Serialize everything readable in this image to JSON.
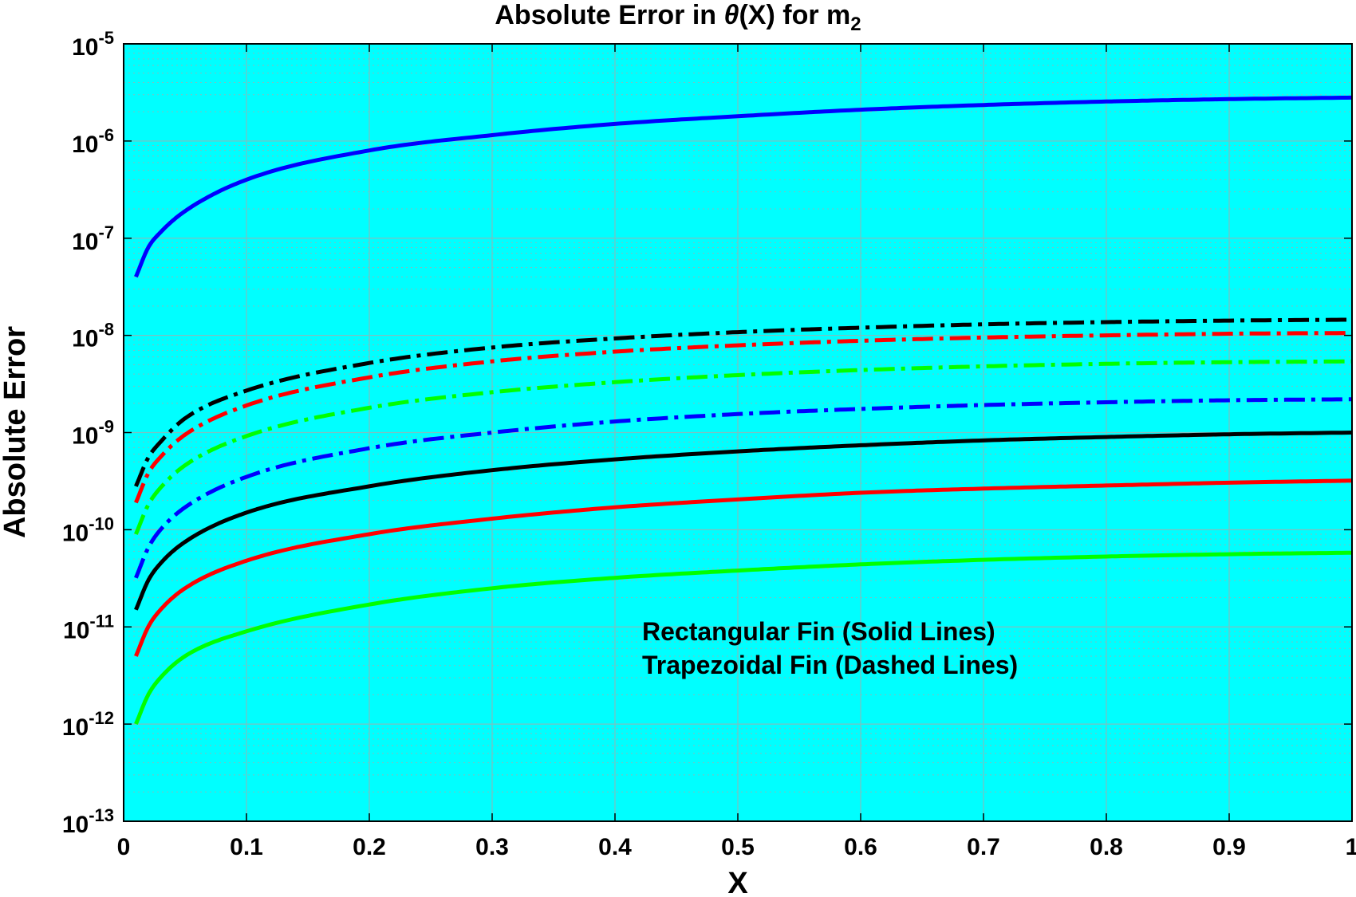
{
  "chart_data": {
    "type": "line",
    "title": {
      "prefix": "Absolute  Error  in  ",
      "theta": "θ",
      "middle": "(X)  for  m",
      "subscript": "2"
    },
    "xlabel": "X",
    "ylabel": "Absolute Error",
    "xlim": [
      0,
      1
    ],
    "ylim": [
      1e-13,
      1e-05
    ],
    "y_scale": "log",
    "grid": true,
    "x_ticks": [
      0,
      0.1,
      0.2,
      0.3,
      0.4,
      0.5,
      0.6,
      0.7,
      0.8,
      0.9,
      1
    ],
    "x_tick_labels": [
      "0",
      "0.1",
      "0.2",
      "0.3",
      "0.4",
      "0.5",
      "0.6",
      "0.7",
      "0.8",
      "0.9",
      "1"
    ],
    "y_ticks": [
      {
        "base": "10",
        "exp": "-13",
        "value": 1e-13
      },
      {
        "base": "10",
        "exp": "-12",
        "value": 1e-12
      },
      {
        "base": "10",
        "exp": "-11",
        "value": 1e-11
      },
      {
        "base": "10",
        "exp": "-10",
        "value": 1e-10
      },
      {
        "base": "10",
        "exp": "-9",
        "value": 1e-09
      },
      {
        "base": "10",
        "exp": "-8",
        "value": 1e-08
      },
      {
        "base": "10",
        "exp": "-7",
        "value": 1e-07
      },
      {
        "base": "10",
        "exp": "-6",
        "value": 1e-06
      },
      {
        "base": "10",
        "exp": "-5",
        "value": 1e-05
      }
    ],
    "x": [
      0.01,
      0.02,
      0.03,
      0.05,
      0.1,
      0.2,
      0.3,
      0.4,
      0.5,
      0.6,
      0.7,
      0.8,
      0.9,
      1.0
    ],
    "series": [
      {
        "color": "#0000ff",
        "dashed": false,
        "values": [
          4e-08,
          8e-08,
          1.15e-07,
          1.9e-07,
          4e-07,
          8e-07,
          1.15e-06,
          1.5e-06,
          1.8e-06,
          2.1e-06,
          2.35e-06,
          2.55e-06,
          2.7e-06,
          2.8e-06
        ]
      },
      {
        "color": "#000000",
        "dashed": false,
        "values": [
          1.5e-11,
          3e-11,
          4.5e-11,
          7.5e-11,
          1.5e-10,
          2.8e-10,
          4.1e-10,
          5.3e-10,
          6.4e-10,
          7.4e-10,
          8.3e-10,
          9e-10,
          9.6e-10,
          1e-09
        ]
      },
      {
        "color": "#ff0000",
        "dashed": false,
        "values": [
          5e-12,
          1e-11,
          1.5e-11,
          2.5e-11,
          4.8e-11,
          9e-11,
          1.3e-10,
          1.7e-10,
          2.05e-10,
          2.4e-10,
          2.65e-10,
          2.85e-10,
          3.05e-10,
          3.2e-10
        ]
      },
      {
        "color": "#00ff00",
        "dashed": false,
        "values": [
          1e-12,
          2e-12,
          3e-12,
          5e-12,
          9e-12,
          1.7e-11,
          2.5e-11,
          3.2e-11,
          3.8e-11,
          4.4e-11,
          4.9e-11,
          5.3e-11,
          5.6e-11,
          5.8e-11
        ]
      },
      {
        "color": "#000000",
        "dashed": true,
        "values": [
          2.8e-10,
          5.5e-10,
          8e-10,
          1.4e-09,
          2.7e-09,
          5.2e-09,
          7.5e-09,
          9.3e-09,
          1.08e-08,
          1.2e-08,
          1.3e-08,
          1.37e-08,
          1.42e-08,
          1.45e-08
        ]
      },
      {
        "color": "#ff0000",
        "dashed": true,
        "values": [
          1.9e-10,
          3.8e-10,
          5.6e-10,
          9.5e-10,
          1.9e-09,
          3.7e-09,
          5.4e-09,
          6.8e-09,
          7.9e-09,
          8.8e-09,
          9.5e-09,
          1e-08,
          1.04e-08,
          1.06e-08
        ]
      },
      {
        "color": "#00ff00",
        "dashed": true,
        "values": [
          9e-11,
          1.8e-10,
          2.7e-10,
          4.6e-10,
          9.2e-10,
          1.8e-09,
          2.6e-09,
          3.3e-09,
          3.9e-09,
          4.4e-09,
          4.8e-09,
          5.1e-09,
          5.3e-09,
          5.4e-09
        ]
      },
      {
        "color": "#0000ff",
        "dashed": true,
        "values": [
          3.2e-11,
          6.5e-11,
          1e-10,
          1.7e-10,
          3.5e-10,
          6.9e-10,
          1e-09,
          1.3e-09,
          1.55e-09,
          1.75e-09,
          1.92e-09,
          2.05e-09,
          2.15e-09,
          2.2e-09
        ]
      }
    ],
    "annotations": [
      "Rectangular Fin (Solid Lines)",
      "Trapezoidal Fin (Dashed Lines)"
    ],
    "colors": {
      "plot_background": "#00ffff",
      "grid": "#7fbfbf"
    }
  }
}
